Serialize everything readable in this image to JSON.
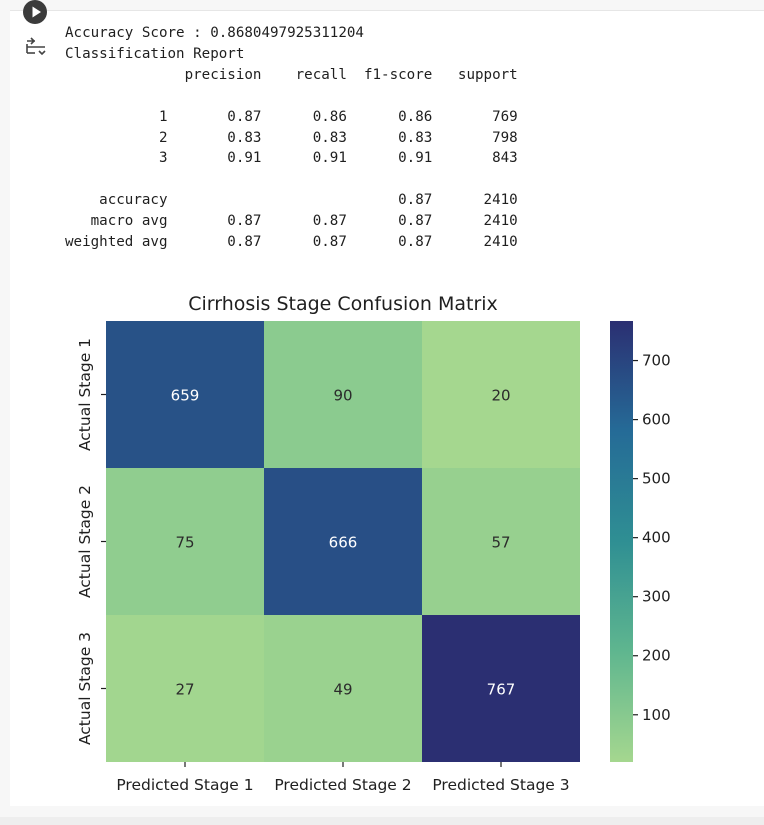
{
  "output": {
    "lines": [
      "Accuracy Score : 0.8680497925311204",
      "Classification Report",
      "              precision    recall  f1-score   support",
      "",
      "           1       0.87      0.86      0.86       769",
      "           2       0.83      0.83      0.83       798",
      "           3       0.91      0.91      0.91       843",
      "",
      "    accuracy                           0.87      2410",
      "   macro avg       0.87      0.87      0.87      2410",
      "weighted avg       0.87      0.87      0.87      2410"
    ]
  },
  "icons": {
    "run": "play-circle-icon",
    "output_toggle": "output-collapse-icon"
  },
  "chart_data": {
    "type": "heatmap",
    "title": "Cirrhosis Stage Confusion Matrix",
    "x_categories": [
      "Predicted Stage 1",
      "Predicted Stage 2",
      "Predicted Stage 3"
    ],
    "y_categories": [
      "Actual Stage 1",
      "Actual Stage 2",
      "Actual Stage 3"
    ],
    "values": [
      [
        659,
        90,
        20
      ],
      [
        75,
        666,
        57
      ],
      [
        27,
        49,
        767
      ]
    ],
    "colorbar": {
      "range": [
        20,
        767
      ],
      "ticks": [
        100,
        200,
        300,
        400,
        500,
        600,
        700
      ],
      "colormap": "crest"
    },
    "colors": {
      "low": "#a5d78f",
      "high": "#2b2f72",
      "annotation_light": "#ffffff",
      "annotation_dark": "#2b2b2b"
    }
  }
}
